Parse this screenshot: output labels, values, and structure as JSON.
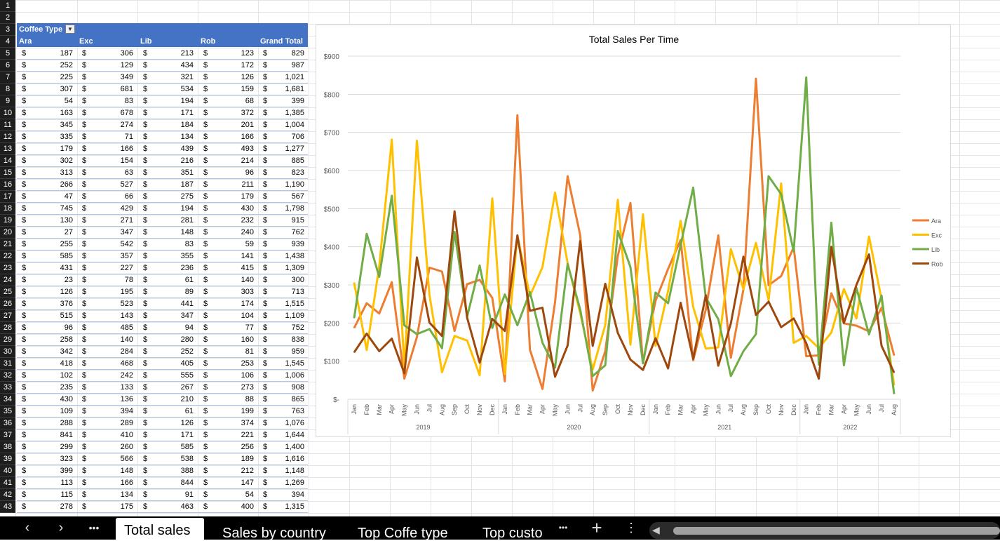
{
  "pivot": {
    "filter_label": "Coffee Type",
    "filter_icon": "dropdown-filter-icon",
    "columns": [
      "Ara",
      "Exc",
      "Lib",
      "Rob",
      "Grand Total"
    ],
    "currency": "$",
    "rows": [
      [
        "187",
        "306",
        "213",
        "123",
        "829"
      ],
      [
        "252",
        "129",
        "434",
        "172",
        "987"
      ],
      [
        "225",
        "349",
        "321",
        "126",
        "1,021"
      ],
      [
        "307",
        "681",
        "534",
        "159",
        "1,681"
      ],
      [
        "54",
        "83",
        "194",
        "68",
        "399"
      ],
      [
        "163",
        "678",
        "171",
        "372",
        "1,385"
      ],
      [
        "345",
        "274",
        "184",
        "201",
        "1,004"
      ],
      [
        "335",
        "71",
        "134",
        "166",
        "706"
      ],
      [
        "179",
        "166",
        "439",
        "493",
        "1,277"
      ],
      [
        "302",
        "154",
        "216",
        "214",
        "885"
      ],
      [
        "313",
        "63",
        "351",
        "96",
        "823"
      ],
      [
        "266",
        "527",
        "187",
        "211",
        "1,190"
      ],
      [
        "47",
        "66",
        "275",
        "179",
        "567"
      ],
      [
        "745",
        "429",
        "194",
        "430",
        "1,798"
      ],
      [
        "130",
        "271",
        "281",
        "232",
        "915"
      ],
      [
        "27",
        "347",
        "148",
        "240",
        "762"
      ],
      [
        "255",
        "542",
        "83",
        "59",
        "939"
      ],
      [
        "585",
        "357",
        "355",
        "141",
        "1,438"
      ],
      [
        "431",
        "227",
        "236",
        "415",
        "1,309"
      ],
      [
        "23",
        "78",
        "61",
        "140",
        "300"
      ],
      [
        "126",
        "195",
        "89",
        "303",
        "713"
      ],
      [
        "376",
        "523",
        "441",
        "174",
        "1,515"
      ],
      [
        "515",
        "143",
        "347",
        "104",
        "1,109"
      ],
      [
        "96",
        "485",
        "94",
        "77",
        "752"
      ],
      [
        "258",
        "140",
        "280",
        "160",
        "838"
      ],
      [
        "342",
        "284",
        "252",
        "81",
        "959"
      ],
      [
        "418",
        "468",
        "405",
        "253",
        "1,545"
      ],
      [
        "102",
        "242",
        "555",
        "106",
        "1,006"
      ],
      [
        "235",
        "133",
        "267",
        "273",
        "908"
      ],
      [
        "430",
        "136",
        "210",
        "88",
        "865"
      ],
      [
        "109",
        "394",
        "61",
        "199",
        "763"
      ],
      [
        "288",
        "289",
        "126",
        "374",
        "1,076"
      ],
      [
        "841",
        "410",
        "171",
        "221",
        "1,644"
      ],
      [
        "299",
        "260",
        "585",
        "256",
        "1,400"
      ],
      [
        "323",
        "566",
        "538",
        "189",
        "1,616"
      ],
      [
        "399",
        "148",
        "388",
        "212",
        "1,148"
      ],
      [
        "113",
        "166",
        "844",
        "147",
        "1,269"
      ],
      [
        "115",
        "134",
        "91",
        "54",
        "394"
      ],
      [
        "278",
        "175",
        "463",
        "400",
        "1,315"
      ]
    ]
  },
  "row_numbers": [
    "1",
    "2",
    "3",
    "4",
    "5",
    "6",
    "7",
    "8",
    "9",
    "10",
    "11",
    "12",
    "13",
    "14",
    "15",
    "16",
    "17",
    "18",
    "19",
    "20",
    "21",
    "22",
    "23",
    "24",
    "25",
    "26",
    "27",
    "28",
    "29",
    "30",
    "31",
    "32",
    "33",
    "34",
    "35",
    "36",
    "37",
    "38",
    "39",
    "40",
    "41",
    "42",
    "43"
  ],
  "chart_data": {
    "type": "line",
    "title": "Total Sales Per Time",
    "ylim": [
      0,
      900
    ],
    "yticks": [
      "$-",
      "$100",
      "$200",
      "$300",
      "$400",
      "$500",
      "$600",
      "$700",
      "$800",
      "$900"
    ],
    "months": [
      "Jan",
      "Feb",
      "Mar",
      "Apr",
      "May",
      "Jun",
      "Jul",
      "Aug",
      "Sep",
      "Oct",
      "Nov",
      "Dec",
      "Jan",
      "Feb",
      "Mar",
      "Apr",
      "May",
      "Jun",
      "Jul",
      "Aug",
      "Sep",
      "Oct",
      "Nov",
      "Dec",
      "Jan",
      "Feb",
      "Mar",
      "Apr",
      "May",
      "Jun",
      "Jul",
      "Aug",
      "Sep",
      "Oct",
      "Nov",
      "Dec",
      "Jan",
      "Feb",
      "Mar",
      "Apr",
      "May",
      "Jun",
      "Jul",
      "Aug"
    ],
    "years": [
      {
        "label": "2019",
        "count": 12
      },
      {
        "label": "2020",
        "count": 12
      },
      {
        "label": "2021",
        "count": 12
      },
      {
        "label": "2022",
        "count": 8
      }
    ],
    "legend_position": "right",
    "grid": true,
    "series": [
      {
        "name": "Ara",
        "color": "#ed7d31",
        "values": [
          187,
          252,
          225,
          307,
          54,
          163,
          345,
          335,
          179,
          302,
          313,
          266,
          47,
          745,
          130,
          27,
          255,
          585,
          431,
          23,
          126,
          376,
          515,
          96,
          258,
          342,
          418,
          102,
          235,
          430,
          109,
          288,
          841,
          299,
          323,
          399,
          113,
          115,
          278,
          199,
          193,
          178,
          240,
          115
        ]
      },
      {
        "name": "Exc",
        "color": "#ffc000",
        "values": [
          306,
          129,
          349,
          681,
          83,
          678,
          274,
          71,
          166,
          154,
          63,
          527,
          66,
          429,
          271,
          347,
          542,
          357,
          227,
          78,
          195,
          523,
          143,
          485,
          140,
          284,
          468,
          242,
          133,
          136,
          394,
          289,
          410,
          260,
          566,
          148,
          166,
          134,
          175,
          289,
          212,
          427,
          262,
          37
        ]
      },
      {
        "name": "Lib",
        "color": "#70ad47",
        "values": [
          213,
          434,
          321,
          534,
          194,
          171,
          184,
          134,
          439,
          216,
          351,
          187,
          275,
          194,
          281,
          148,
          83,
          355,
          236,
          61,
          89,
          441,
          347,
          94,
          280,
          252,
          405,
          555,
          267,
          210,
          61,
          126,
          171,
          585,
          538,
          388,
          844,
          91,
          463,
          89,
          292,
          170,
          272,
          14
        ]
      },
      {
        "name": "Rob",
        "color": "#9e480e",
        "values": [
          123,
          172,
          126,
          159,
          68,
          372,
          201,
          166,
          493,
          214,
          96,
          211,
          179,
          430,
          232,
          240,
          59,
          141,
          415,
          140,
          303,
          174,
          104,
          77,
          160,
          81,
          253,
          106,
          273,
          88,
          199,
          374,
          221,
          256,
          189,
          212,
          147,
          54,
          400,
          200,
          300,
          380,
          140,
          70
        ]
      }
    ]
  },
  "tabs": {
    "nav_prev_icon": "chevron-left-icon",
    "nav_next_icon": "chevron-right-icon",
    "more_icon": "more-horizontal-icon",
    "add_icon": "plus-icon",
    "menu_icon": "more-vertical-icon",
    "sheets": [
      "Total sales",
      "Sales by country",
      "Top Coffe type",
      "Top custo"
    ]
  },
  "scroll_arrow_icon": "scroll-left-arrow-icon"
}
